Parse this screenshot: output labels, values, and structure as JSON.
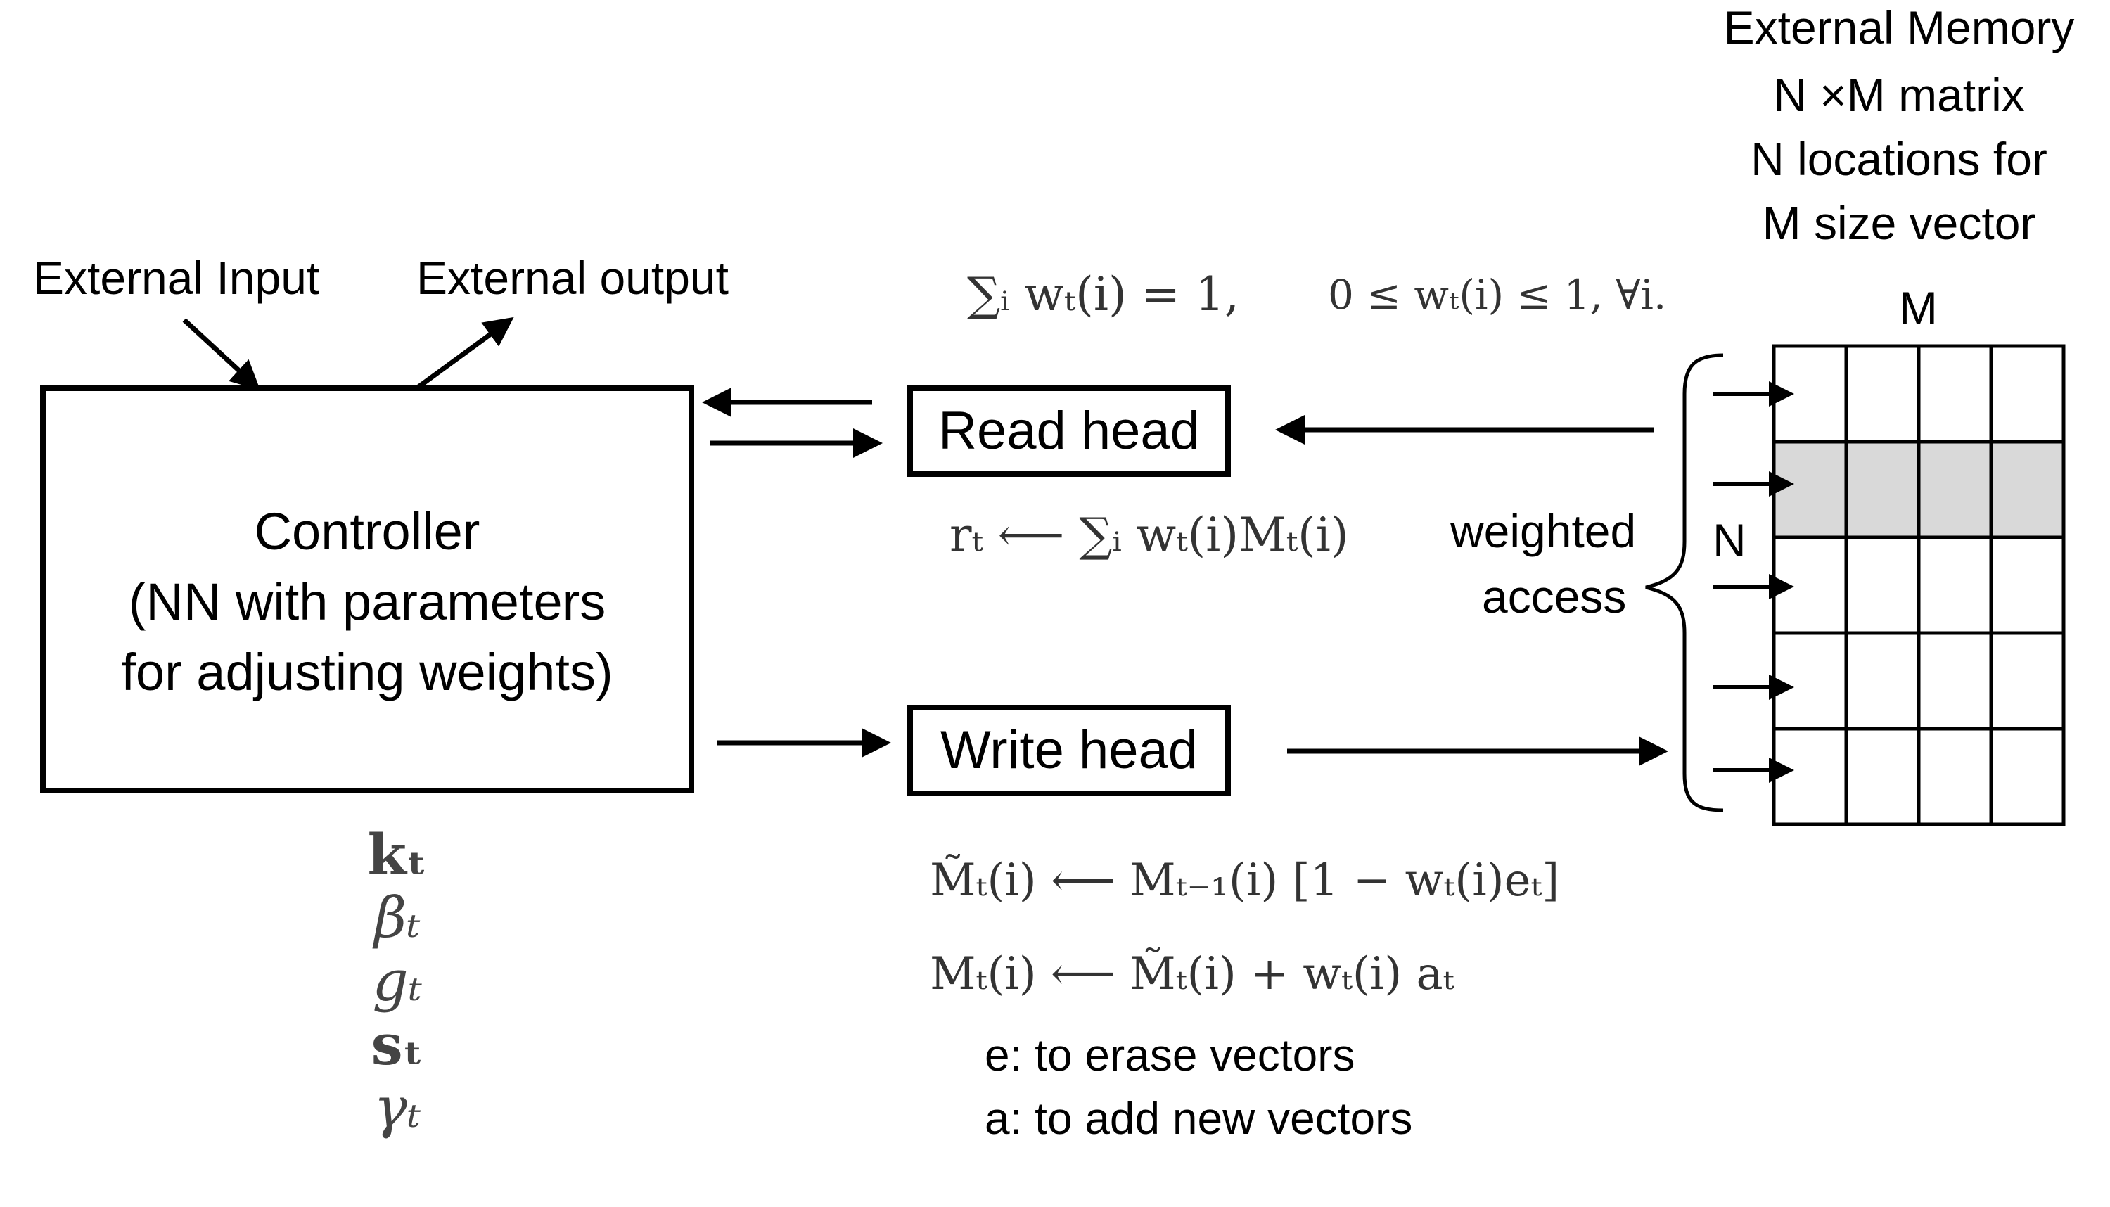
{
  "labels": {
    "external_input": "External Input",
    "external_output": "External output",
    "memory_title": "External Memory",
    "memory_line2": "N ×M matrix",
    "memory_line3": "N locations for",
    "memory_line4": "M size vector",
    "m_axis": "M",
    "n_axis": "N",
    "weighted": "weighted",
    "access": "access"
  },
  "controller": {
    "line1": "Controller",
    "line2": "(NN with parameters",
    "line3": "for adjusting weights)"
  },
  "heads": {
    "read": "Read head",
    "write": "Write head"
  },
  "equations": {
    "weights_constraint_a": "∑ᵢ wₜ(i) = 1,",
    "weights_constraint_b": "0 ≤ wₜ(i) ≤ 1, ∀i.",
    "read": "rₜ ⟵ ∑ᵢ wₜ(i)Mₜ(i)",
    "erase": "M̃ₜ(i) ⟵ Mₜ₋₁(i) [1 − wₜ(i)eₜ]",
    "add": "Mₜ(i) ⟵ M̃ₜ(i) + wₜ(i) aₜ"
  },
  "controller_outputs": [
    "kₜ",
    "βₜ",
    "gₜ",
    "sₜ",
    "γₜ"
  ],
  "notes": {
    "erase": "e: to erase vectors",
    "add": "a: to add new vectors"
  },
  "memory": {
    "rows": 5,
    "cols": 4,
    "highlighted_row": 2,
    "highlight_color": "#d9d9d9"
  }
}
